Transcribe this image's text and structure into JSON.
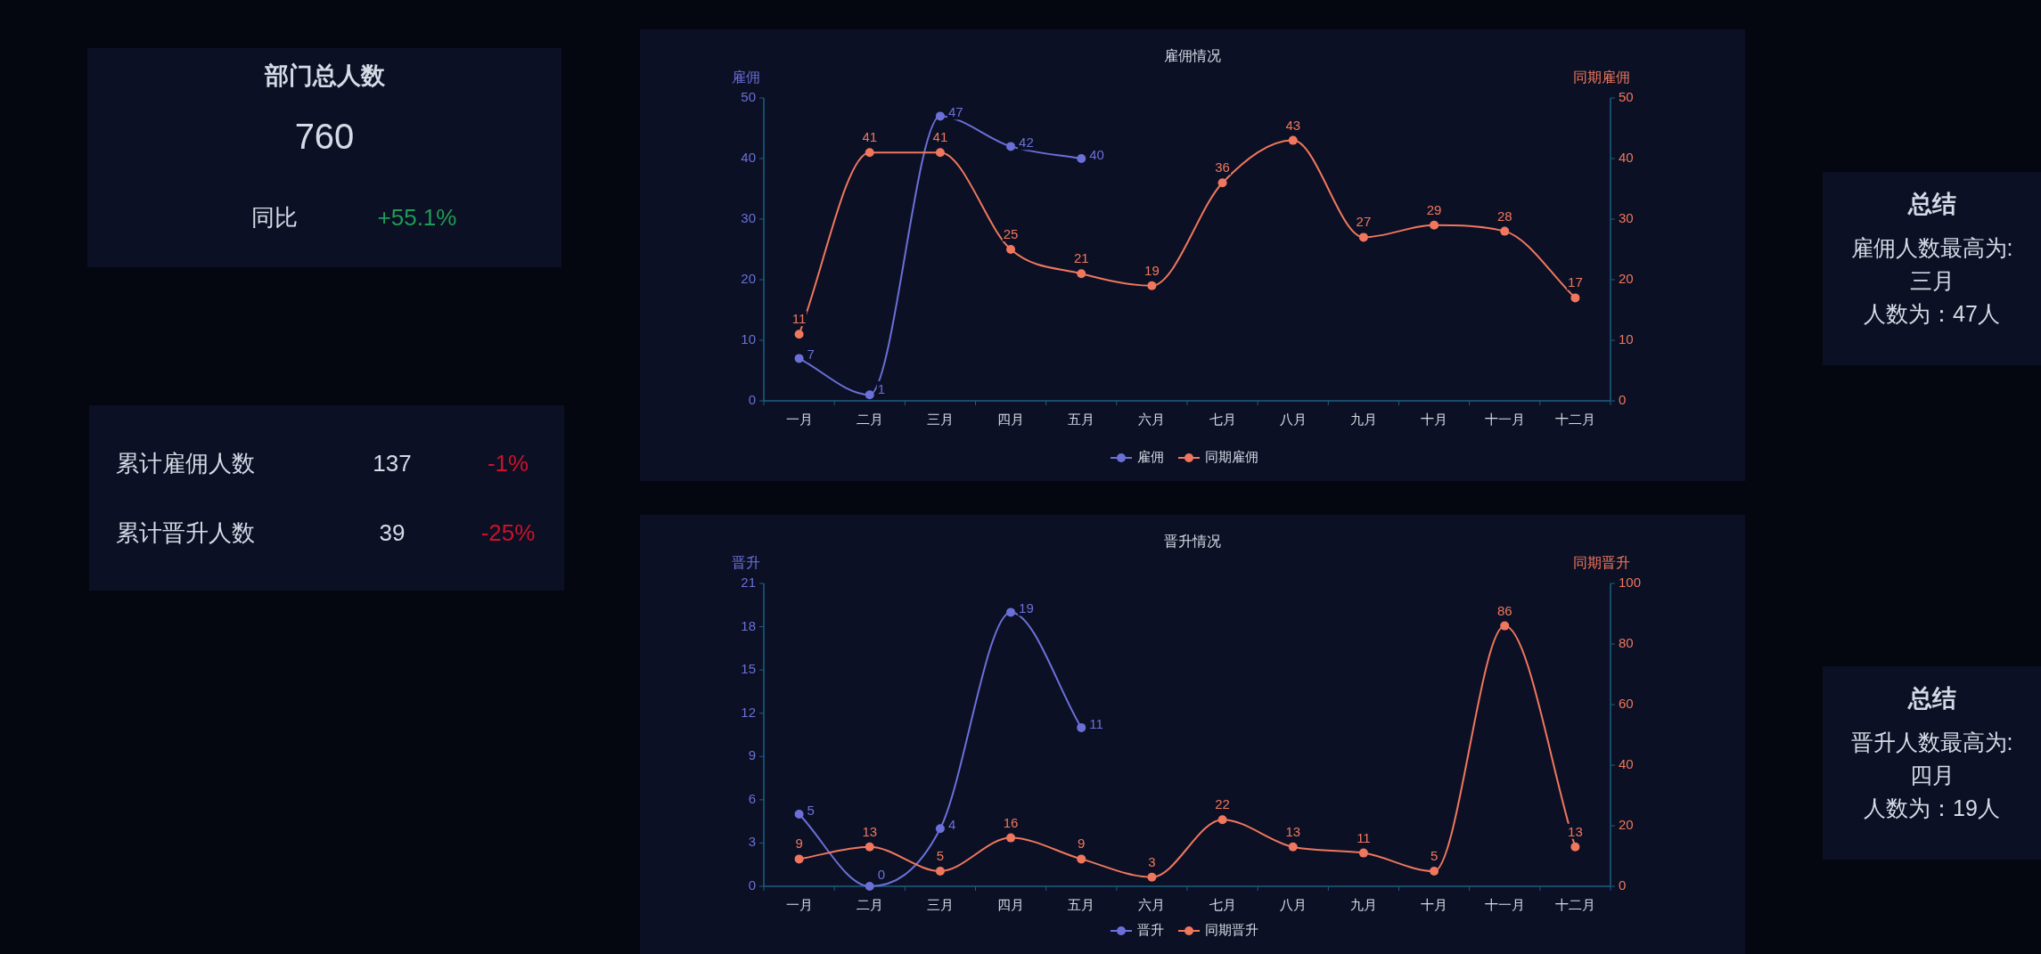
{
  "chart_data": [
    {
      "type": "other",
      "title": "部门总人数",
      "annotations": [
        "760",
        "同比",
        "+55.1%"
      ],
      "colors": [
        "#d6dae6",
        "#d6dae6",
        "#1f9d55"
      ]
    },
    {
      "type": "other",
      "annotations": [
        "累计雇佣人数",
        "137",
        "-1%",
        "累计晋升人数",
        "39",
        "-25%"
      ],
      "colors": [
        "#d6dae6",
        "#d6dae6",
        "#d0102a",
        "#d6dae6",
        "#d6dae6",
        "#d0102a"
      ]
    },
    {
      "type": "line",
      "title": "雇佣情况",
      "ylabel": "雇佣",
      "y2label": "同期雇佣",
      "categories": [
        "一月",
        "二月",
        "三月",
        "四月",
        "五月",
        "六月",
        "七月",
        "八月",
        "九月",
        "十月",
        "十一月",
        "十二月"
      ],
      "series": [
        {
          "name": "雇佣",
          "color": "#6b70d8",
          "values": [
            7,
            1,
            47,
            42,
            40,
            null,
            null,
            null,
            null,
            null,
            null,
            null
          ]
        },
        {
          "name": "同期雇佣",
          "color": "#f0775e",
          "axis": "y2",
          "values": [
            11,
            41,
            41,
            25,
            21,
            19,
            36,
            43,
            27,
            29,
            28,
            17
          ]
        }
      ],
      "ylim": [
        0,
        50
      ],
      "yticks": [
        0,
        10,
        20,
        30,
        40,
        50
      ],
      "y2lim": [
        0,
        50
      ],
      "y2ticks": [
        0,
        10,
        20,
        30,
        40,
        50
      ],
      "data_labels": true,
      "marker": "circle",
      "legend": "bottom",
      "grid": false
    },
    {
      "type": "line",
      "title": "晋升情况",
      "ylabel": "晋升",
      "y2label": "同期晋升",
      "categories": [
        "一月",
        "二月",
        "三月",
        "四月",
        "五月",
        "六月",
        "七月",
        "八月",
        "九月",
        "十月",
        "十一月",
        "十二月"
      ],
      "series": [
        {
          "name": "晋升",
          "color": "#6b70d8",
          "values": [
            5,
            0,
            4,
            19,
            11,
            null,
            null,
            null,
            null,
            null,
            null,
            null
          ]
        },
        {
          "name": "同期晋升",
          "color": "#f0775e",
          "axis": "y2",
          "values": [
            9,
            13,
            5,
            16,
            9,
            3,
            22,
            13,
            11,
            5,
            86,
            13
          ]
        }
      ],
      "ylim": [
        0,
        21
      ],
      "yticks": [
        0,
        3,
        6,
        9,
        12,
        15,
        18,
        21
      ],
      "y2lim": [
        0,
        100
      ],
      "y2ticks": [
        0,
        20,
        40,
        60,
        80,
        100
      ],
      "data_labels": true,
      "marker": "circle",
      "legend": "bottom",
      "grid": false
    },
    {
      "type": "other",
      "title": "总结",
      "annotations": [
        "雇佣人数最高为:",
        "三月",
        "人数为：47人"
      ]
    },
    {
      "type": "other",
      "title": "总结",
      "annotations": [
        "晋升人数最高为:",
        "四月",
        "人数为：19人"
      ]
    }
  ]
}
